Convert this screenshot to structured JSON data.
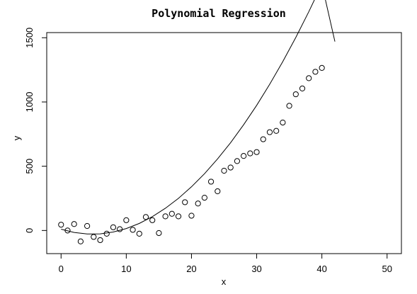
{
  "chart_data": {
    "type": "scatter",
    "title": "Polynomial Regression",
    "xlabel": "x",
    "ylabel": "y",
    "xlim": [
      -2.2,
      52.2
    ],
    "ylim": [
      -180,
      1540
    ],
    "x_ticks": [
      0,
      10,
      20,
      30,
      40,
      50
    ],
    "y_ticks": [
      0,
      500,
      1000,
      1500
    ],
    "x_tick_labels": [
      "0",
      "10",
      "20",
      "30",
      "40",
      "50"
    ],
    "y_tick_labels": [
      "0",
      "500",
      "1000",
      "1500"
    ],
    "grid": false,
    "legend": "none",
    "series": [
      {
        "kind": "points",
        "marker": "open-circle",
        "color": "#000000",
        "x": [
          0,
          1,
          2,
          3,
          4,
          5,
          6,
          7,
          8,
          9,
          10,
          11,
          12,
          13,
          14,
          15,
          16,
          17,
          18,
          19,
          20,
          21,
          22,
          23,
          24,
          25,
          26,
          27,
          28,
          29,
          30,
          31,
          32,
          33,
          34,
          35,
          36,
          37,
          38,
          39,
          40
        ],
        "y": [
          45,
          0,
          50,
          -85,
          35,
          -50,
          -75,
          -25,
          25,
          10,
          80,
          5,
          -25,
          105,
          80,
          -20,
          110,
          130,
          110,
          220,
          115,
          210,
          255,
          380,
          305,
          465,
          490,
          540,
          580,
          600,
          610,
          710,
          765,
          775,
          840,
          970,
          1060,
          1105,
          1185,
          1235,
          1265
        ]
      },
      {
        "kind": "fit-line",
        "color": "#000000",
        "x": [
          0,
          2,
          4,
          6,
          8,
          10,
          12,
          14,
          16,
          18,
          20,
          22,
          24,
          26,
          28,
          30,
          32,
          34,
          36,
          38,
          40,
          42
        ],
        "y": [
          10,
          -15,
          -27,
          -26,
          -12,
          15,
          55,
          108,
          173,
          250,
          340,
          442,
          557,
          683,
          823,
          974,
          1138,
          1314,
          1502,
          1703,
          1916,
          1470
        ]
      }
    ]
  }
}
